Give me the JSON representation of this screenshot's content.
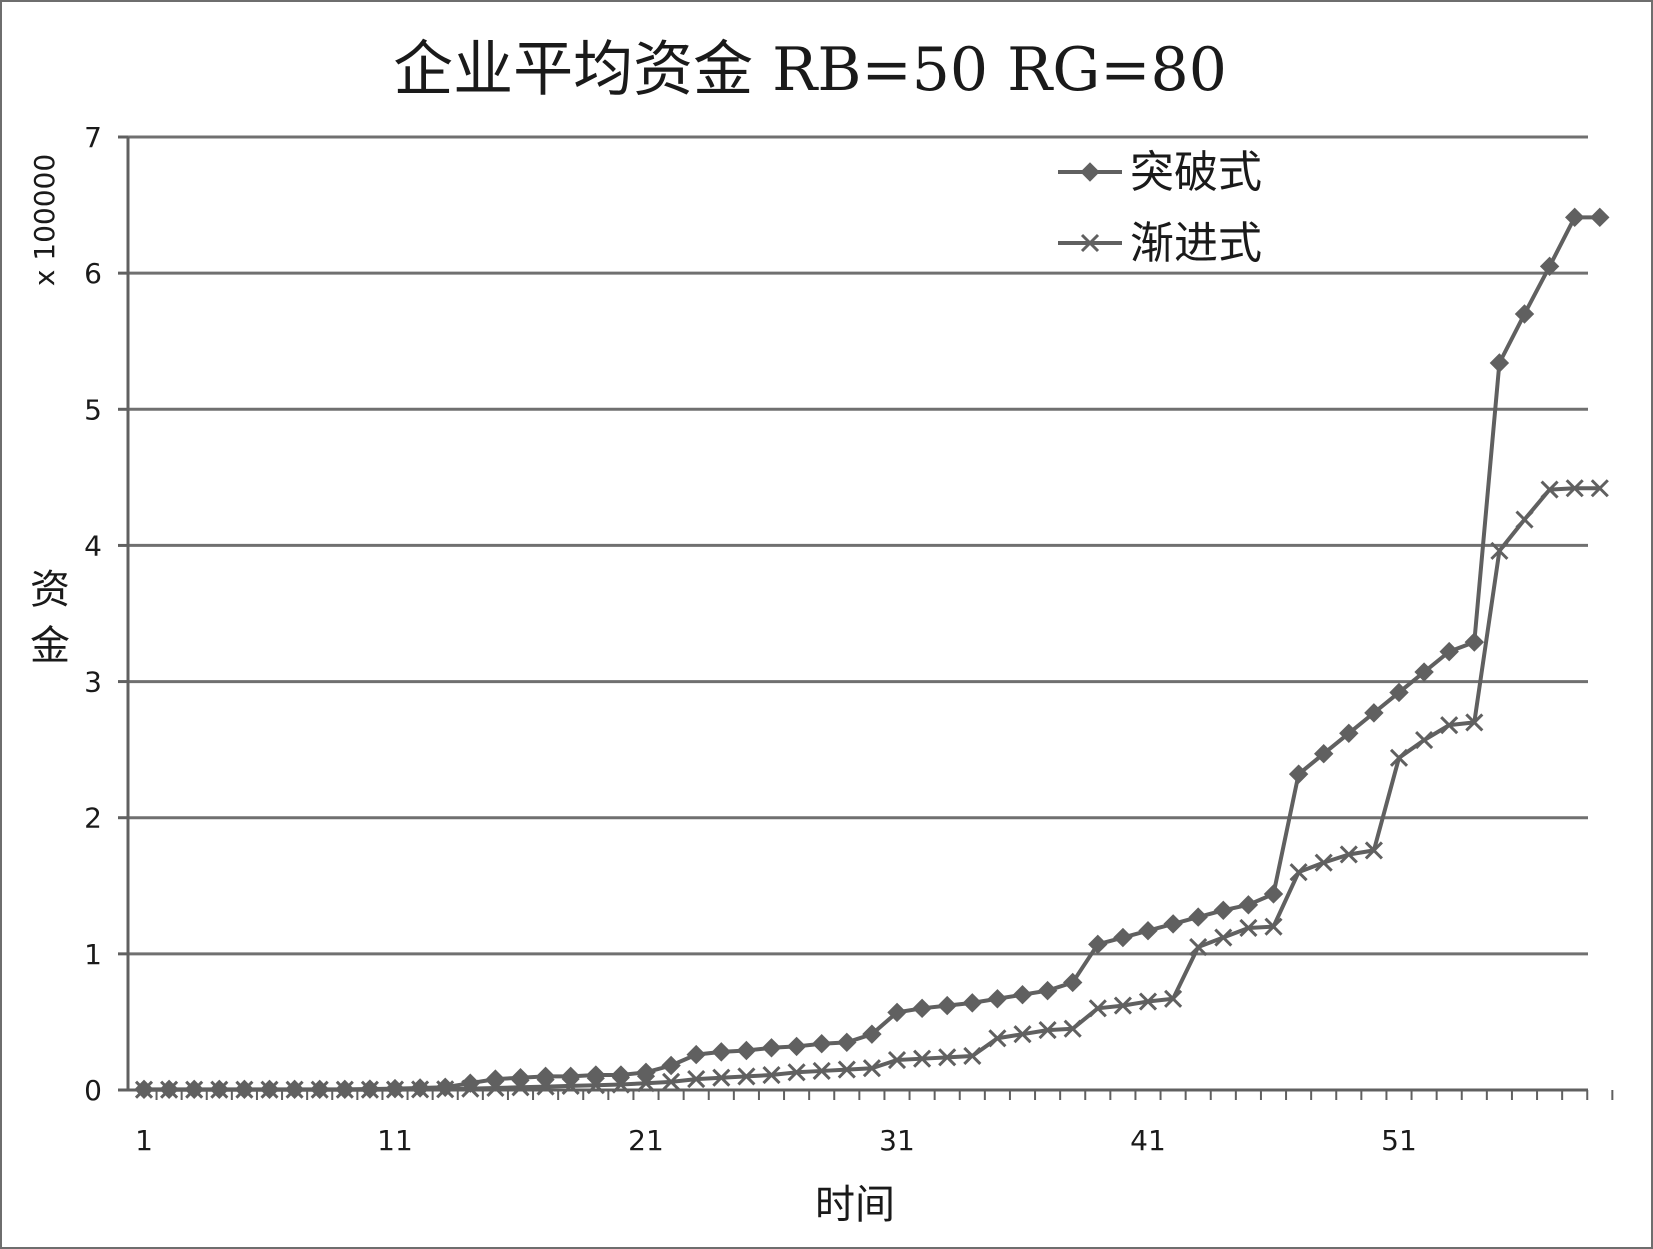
{
  "chart_data": {
    "type": "line",
    "title": "企业平均资金 RB=50 RG=80",
    "xlabel": "时间",
    "ylabel": "资金",
    "y_unit": "x 100000",
    "x": [
      1,
      2,
      3,
      4,
      5,
      6,
      7,
      8,
      9,
      10,
      11,
      12,
      13,
      14,
      15,
      16,
      17,
      18,
      19,
      20,
      21,
      22,
      23,
      24,
      25,
      26,
      27,
      28,
      29,
      30,
      31,
      32,
      33,
      34,
      35,
      36,
      37,
      38,
      39,
      40,
      41,
      42,
      43,
      44,
      45,
      46,
      47,
      48,
      49,
      50,
      51,
      52,
      53,
      54,
      55,
      56,
      57,
      58,
      59
    ],
    "x_tick_labels": [
      "1",
      "11",
      "21",
      "31",
      "41",
      "51"
    ],
    "y_tick_labels": [
      "0",
      "1",
      "2",
      "3",
      "4",
      "5",
      "6",
      "7"
    ],
    "ylim": [
      0,
      7
    ],
    "grid": "horizontal",
    "legend_position": "top-right",
    "series": [
      {
        "name": "突破式",
        "marker": "diamond",
        "values": [
          0.005,
          0.005,
          0.005,
          0.005,
          0.005,
          0.005,
          0.005,
          0.005,
          0.005,
          0.007,
          0.01,
          0.015,
          0.02,
          0.05,
          0.08,
          0.09,
          0.1,
          0.1,
          0.11,
          0.11,
          0.13,
          0.18,
          0.26,
          0.28,
          0.29,
          0.31,
          0.32,
          0.34,
          0.35,
          0.41,
          0.57,
          0.6,
          0.62,
          0.64,
          0.67,
          0.7,
          0.73,
          0.79,
          1.07,
          1.12,
          1.17,
          1.22,
          1.27,
          1.32,
          1.36,
          1.44,
          2.32,
          2.47,
          2.62,
          2.77,
          2.92,
          3.07,
          3.22,
          3.29,
          5.34,
          5.7,
          6.05,
          6.41,
          6.41
        ]
      },
      {
        "name": "渐进式",
        "marker": "x",
        "values": [
          0.002,
          0.002,
          0.002,
          0.002,
          0.002,
          0.002,
          0.002,
          0.002,
          0.002,
          0.002,
          0.003,
          0.004,
          0.005,
          0.01,
          0.015,
          0.02,
          0.025,
          0.03,
          0.035,
          0.04,
          0.05,
          0.06,
          0.08,
          0.09,
          0.1,
          0.11,
          0.13,
          0.14,
          0.15,
          0.16,
          0.22,
          0.23,
          0.24,
          0.25,
          0.38,
          0.41,
          0.44,
          0.45,
          0.6,
          0.62,
          0.65,
          0.67,
          1.05,
          1.12,
          1.19,
          1.2,
          1.6,
          1.67,
          1.73,
          1.76,
          2.44,
          2.57,
          2.68,
          2.7,
          3.96,
          4.19,
          4.41,
          4.42,
          4.42
        ]
      }
    ],
    "colors": {
      "series": "#606060",
      "grid": "#707070",
      "axis": "#606060",
      "frame": "#6e6e6e"
    }
  }
}
